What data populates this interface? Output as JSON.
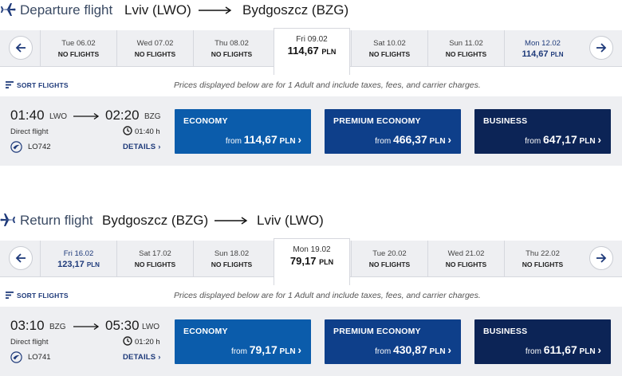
{
  "departure": {
    "title": {
      "label": "Departure flight",
      "from": "Lviv (LWO)",
      "to": "Bydgoszcz (BZG)"
    },
    "dates": [
      {
        "date": "Tue 06.02",
        "status": "NO FLIGHTS",
        "price": null,
        "currency": null,
        "selected": false
      },
      {
        "date": "Wed 07.02",
        "status": "NO FLIGHTS",
        "price": null,
        "currency": null,
        "selected": false
      },
      {
        "date": "Thu 08.02",
        "status": "NO FLIGHTS",
        "price": null,
        "currency": null,
        "selected": false
      },
      {
        "date": "Fri 09.02",
        "status": null,
        "price": "114,67",
        "currency": "PLN",
        "selected": true
      },
      {
        "date": "Sat 10.02",
        "status": "NO FLIGHTS",
        "price": null,
        "currency": null,
        "selected": false
      },
      {
        "date": "Sun 11.02",
        "status": "NO FLIGHTS",
        "price": null,
        "currency": null,
        "selected": false
      },
      {
        "date": "Mon 12.02",
        "status": null,
        "price": "114,67",
        "currency": "PLN",
        "selected": false
      }
    ],
    "sort_label": "SORT FLIGHTS",
    "price_note": "Prices displayed below are for 1 Adult and include taxes, fees, and carrier charges.",
    "flight": {
      "dep_time": "01:40",
      "dep_code": "LWO",
      "arr_time": "02:20",
      "arr_code": "BZG",
      "type": "Direct flight",
      "duration": "01:40 h",
      "flight_no": "LO742",
      "details": "DETAILS"
    },
    "fares": [
      {
        "name": "ECONOMY",
        "from": "from",
        "price": "114,67",
        "currency": "PLN"
      },
      {
        "name": "PREMIUM ECONOMY",
        "from": "from",
        "price": "466,37",
        "currency": "PLN"
      },
      {
        "name": "BUSINESS",
        "from": "from",
        "price": "647,17",
        "currency": "PLN"
      }
    ]
  },
  "return": {
    "title": {
      "label": "Return flight",
      "from": "Bydgoszcz (BZG)",
      "to": "Lviv (LWO)"
    },
    "dates": [
      {
        "date": "Fri 16.02",
        "status": null,
        "price": "123,17",
        "currency": "PLN",
        "selected": false
      },
      {
        "date": "Sat 17.02",
        "status": "NO FLIGHTS",
        "price": null,
        "currency": null,
        "selected": false
      },
      {
        "date": "Sun 18.02",
        "status": "NO FLIGHTS",
        "price": null,
        "currency": null,
        "selected": false
      },
      {
        "date": "Mon 19.02",
        "status": null,
        "price": "79,17",
        "currency": "PLN",
        "selected": true
      },
      {
        "date": "Tue 20.02",
        "status": "NO FLIGHTS",
        "price": null,
        "currency": null,
        "selected": false
      },
      {
        "date": "Wed 21.02",
        "status": "NO FLIGHTS",
        "price": null,
        "currency": null,
        "selected": false
      },
      {
        "date": "Thu 22.02",
        "status": "NO FLIGHTS",
        "price": null,
        "currency": null,
        "selected": false
      }
    ],
    "sort_label": "SORT FLIGHTS",
    "price_note": "Prices displayed below are for 1 Adult and include taxes, fees, and carrier charges.",
    "flight": {
      "dep_time": "03:10",
      "dep_code": "BZG",
      "arr_time": "05:30",
      "arr_code": "LWO",
      "type": "Direct flight",
      "duration": "01:20 h",
      "flight_no": "LO741",
      "details": "DETAILS"
    },
    "fares": [
      {
        "name": "ECONOMY",
        "from": "from",
        "price": "79,17",
        "currency": "PLN"
      },
      {
        "name": "PREMIUM ECONOMY",
        "from": "from",
        "price": "430,87",
        "currency": "PLN"
      },
      {
        "name": "BUSINESS",
        "from": "from",
        "price": "611,67",
        "currency": "PLN"
      }
    ]
  },
  "icons": {
    "plane": "airplane-icon",
    "prev": "arrow-left-icon",
    "next": "arrow-right-icon",
    "sort": "sort-icon",
    "clock": "clock-icon",
    "airline": "airline-logo-icon",
    "chevron": "chevron-right-icon"
  },
  "colors": {
    "economy": "#0b5cab",
    "premium_economy": "#0e3f8a",
    "business": "#0c2456",
    "accent": "#1e3a7a",
    "strip": "#eeeff2"
  }
}
